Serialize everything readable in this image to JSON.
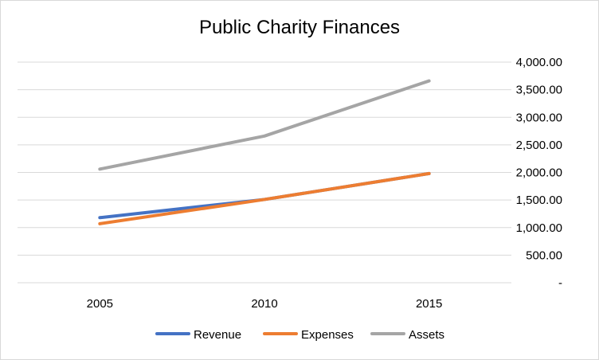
{
  "chart_data": {
    "type": "line",
    "title": "Public Charity Finances",
    "categories": [
      "2005",
      "2010",
      "2015"
    ],
    "series": [
      {
        "name": "Revenue",
        "values": [
          1180,
          1510,
          1980
        ],
        "color": "#4472c4"
      },
      {
        "name": "Expenses",
        "values": [
          1070,
          1510,
          1980
        ],
        "color": "#ed7d31"
      },
      {
        "name": "Assets",
        "values": [
          2060,
          2660,
          3660
        ],
        "color": "#a5a5a5"
      }
    ],
    "y_ticks": [
      "-",
      "500.00",
      "1,000.00",
      "1,500.00",
      "2,000.00",
      "2,500.00",
      "3,000.00",
      "3,500.00",
      "4,000.00"
    ],
    "ylim": [
      0,
      4000
    ],
    "y_axis_side": "right",
    "grid": true,
    "legend_position": "bottom",
    "xlabel": "",
    "ylabel": ""
  }
}
